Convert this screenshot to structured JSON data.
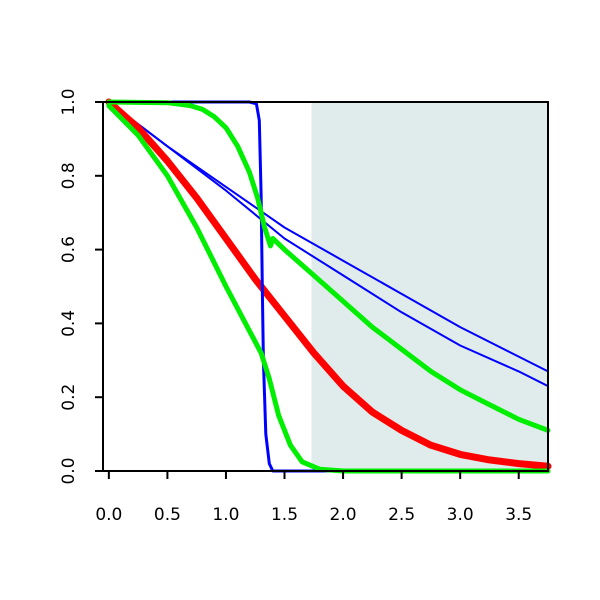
{
  "chart_data": {
    "type": "line",
    "title": "",
    "xlabel": "",
    "ylabel": "",
    "xlim": [
      -0.05,
      3.75
    ],
    "ylim": [
      0.0,
      1.0
    ],
    "x_ticks": [
      0.0,
      0.5,
      1.0,
      1.5,
      2.0,
      2.5,
      3.0,
      3.5
    ],
    "x_tick_labels": [
      "0.0",
      "0.5",
      "1.0",
      "1.5",
      "2.0",
      "2.5",
      "3.0",
      "3.5"
    ],
    "y_ticks": [
      0.0,
      0.2,
      0.4,
      0.6,
      0.8,
      1.0
    ],
    "y_tick_labels": [
      "0.0",
      "0.2",
      "0.4",
      "0.6",
      "0.8",
      "1.0"
    ],
    "grid": false,
    "legend": "none",
    "shaded_region": {
      "x_start": 1.73,
      "x_end": 3.75,
      "color": "#dfeceb"
    },
    "series": [
      {
        "color": "#0000ff",
        "width": 2,
        "points": [
          [
            0.0,
            1.0
          ],
          [
            0.5,
            0.88
          ],
          [
            1.0,
            0.77
          ],
          [
            1.5,
            0.66
          ],
          [
            2.0,
            0.57
          ],
          [
            2.5,
            0.48
          ],
          [
            3.0,
            0.39
          ],
          [
            3.5,
            0.31
          ],
          [
            3.75,
            0.27
          ]
        ]
      },
      {
        "color": "#0000ff",
        "width": 2,
        "points": [
          [
            0.0,
            1.0
          ],
          [
            0.5,
            0.88
          ],
          [
            1.0,
            0.76
          ],
          [
            1.5,
            0.63
          ],
          [
            2.0,
            0.53
          ],
          [
            2.5,
            0.43
          ],
          [
            3.0,
            0.34
          ],
          [
            3.5,
            0.27
          ],
          [
            3.75,
            0.23
          ]
        ]
      },
      {
        "color": "#ff0000",
        "width": 7,
        "points": [
          [
            0.0,
            1.0
          ],
          [
            0.25,
            0.93
          ],
          [
            0.5,
            0.84
          ],
          [
            0.75,
            0.74
          ],
          [
            1.0,
            0.63
          ],
          [
            1.25,
            0.52
          ],
          [
            1.5,
            0.42
          ],
          [
            1.75,
            0.32
          ],
          [
            2.0,
            0.23
          ],
          [
            2.25,
            0.16
          ],
          [
            2.5,
            0.11
          ],
          [
            2.75,
            0.07
          ],
          [
            3.0,
            0.045
          ],
          [
            3.25,
            0.03
          ],
          [
            3.5,
            0.02
          ],
          [
            3.75,
            0.013
          ]
        ]
      },
      {
        "color": "#0000ff",
        "width": 3,
        "points": [
          [
            0.0,
            1.0
          ],
          [
            1.0,
            1.0
          ],
          [
            1.2,
            1.0
          ],
          [
            1.26,
            0.995
          ],
          [
            1.285,
            0.95
          ],
          [
            1.3,
            0.75
          ],
          [
            1.31,
            0.5
          ],
          [
            1.32,
            0.3
          ],
          [
            1.34,
            0.1
          ],
          [
            1.37,
            0.02
          ],
          [
            1.4,
            0.0
          ],
          [
            3.75,
            0.0
          ]
        ]
      },
      {
        "color": "#00ee00",
        "width": 5,
        "points": [
          [
            0.0,
            1.0
          ],
          [
            0.5,
            0.998
          ],
          [
            0.7,
            0.99
          ],
          [
            0.8,
            0.98
          ],
          [
            0.9,
            0.96
          ],
          [
            1.0,
            0.93
          ],
          [
            1.1,
            0.88
          ],
          [
            1.2,
            0.81
          ],
          [
            1.27,
            0.74
          ],
          [
            1.33,
            0.66
          ],
          [
            1.38,
            0.61
          ],
          [
            1.4,
            0.63
          ],
          [
            1.5,
            0.6
          ],
          [
            1.75,
            0.53
          ],
          [
            2.0,
            0.46
          ],
          [
            2.25,
            0.39
          ],
          [
            2.5,
            0.33
          ],
          [
            2.75,
            0.27
          ],
          [
            3.0,
            0.22
          ],
          [
            3.25,
            0.18
          ],
          [
            3.5,
            0.14
          ],
          [
            3.75,
            0.11
          ]
        ]
      },
      {
        "color": "#00ee00",
        "width": 5,
        "points": [
          [
            0.0,
            0.99
          ],
          [
            0.25,
            0.91
          ],
          [
            0.5,
            0.8
          ],
          [
            0.75,
            0.66
          ],
          [
            1.0,
            0.5
          ],
          [
            1.2,
            0.38
          ],
          [
            1.3,
            0.32
          ],
          [
            1.37,
            0.25
          ],
          [
            1.45,
            0.15
          ],
          [
            1.55,
            0.07
          ],
          [
            1.65,
            0.025
          ],
          [
            1.8,
            0.005
          ],
          [
            2.0,
            0.0
          ],
          [
            3.75,
            0.0
          ]
        ]
      }
    ]
  }
}
